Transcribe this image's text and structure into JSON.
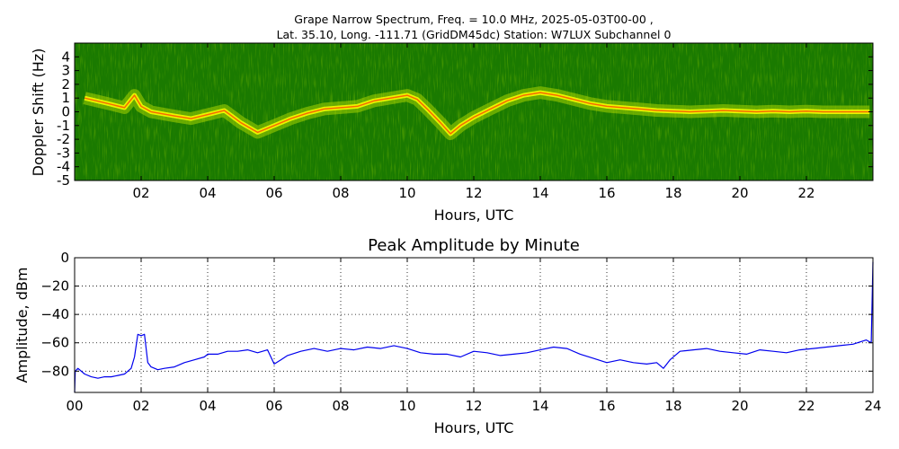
{
  "chart_data": [
    {
      "type": "heatmap",
      "title_line1": "Grape Narrow Spectrum, Freq. = 10.0 MHz, 2025-05-03T00-00 ,",
      "title_line2": "Lat.  35.10, Long. -111.71 (GridDM45dc) Station: W7LUX Subchannel 0",
      "xlabel": "Hours, UTC",
      "ylabel": "Doppler Shift (Hz)",
      "xlim": [
        0,
        24
      ],
      "ylim": [
        -5,
        5
      ],
      "x_ticks": [
        "02",
        "04",
        "06",
        "08",
        "10",
        "12",
        "14",
        "16",
        "18",
        "20",
        "22"
      ],
      "x_tick_values": [
        2,
        4,
        6,
        8,
        10,
        12,
        14,
        16,
        18,
        20,
        22
      ],
      "y_ticks": [
        "4",
        "3",
        "2",
        "1",
        "0",
        "-1",
        "-2",
        "-3",
        "-4",
        "-5"
      ],
      "y_tick_values": [
        4,
        3,
        2,
        1,
        0,
        -1,
        -2,
        -3,
        -4,
        -5
      ],
      "colors": {
        "background": "#1a7a00",
        "mid": "#b4dc00",
        "trace": "#ffff00",
        "peak": "#ff3000"
      },
      "doppler_trace": {
        "x": [
          0.3,
          1.0,
          1.5,
          1.8,
          2.0,
          2.3,
          3.0,
          3.5,
          4.0,
          4.5,
          5.0,
          5.5,
          6.0,
          6.5,
          7.0,
          7.5,
          8.0,
          8.5,
          9.0,
          9.5,
          10.0,
          10.3,
          10.6,
          11.0,
          11.3,
          11.6,
          12.0,
          12.5,
          13.0,
          13.5,
          14.0,
          14.5,
          15.0,
          15.5,
          16.0,
          16.5,
          17.0,
          17.5,
          18.0,
          18.5,
          19.0,
          19.5,
          20.0,
          20.5,
          21.0,
          21.5,
          22.0,
          22.5,
          23.0,
          23.5,
          23.9
        ],
        "y": [
          1.0,
          0.6,
          0.3,
          1.2,
          0.4,
          0.0,
          -0.3,
          -0.5,
          -0.2,
          0.1,
          -0.8,
          -1.5,
          -1.0,
          -0.5,
          -0.1,
          0.2,
          0.3,
          0.4,
          0.8,
          1.0,
          1.2,
          0.9,
          0.2,
          -0.8,
          -1.6,
          -1.0,
          -0.4,
          0.2,
          0.8,
          1.2,
          1.4,
          1.2,
          0.9,
          0.6,
          0.4,
          0.3,
          0.2,
          0.1,
          0.05,
          0.0,
          0.05,
          0.1,
          0.05,
          0.0,
          0.05,
          0.0,
          0.05,
          0.0,
          0.0,
          0.0,
          0.0
        ]
      }
    },
    {
      "type": "line",
      "title": "Peak Amplitude by Minute",
      "xlabel": "Hours, UTC",
      "ylabel": "Amplitude, dBm",
      "xlim": [
        0,
        24
      ],
      "ylim": [
        -95,
        0
      ],
      "grid": true,
      "x_ticks": [
        "00",
        "02",
        "04",
        "06",
        "08",
        "10",
        "12",
        "14",
        "16",
        "18",
        "20",
        "22",
        "24"
      ],
      "x_tick_values": [
        0,
        2,
        4,
        6,
        8,
        10,
        12,
        14,
        16,
        18,
        20,
        22,
        24
      ],
      "y_ticks": [
        "0",
        "−20",
        "−40",
        "−60",
        "−80"
      ],
      "y_tick_values": [
        0,
        -20,
        -40,
        -60,
        -80
      ],
      "colors": {
        "line": "#0000ee"
      },
      "series": [
        {
          "x": [
            0.0,
            0.02,
            0.1,
            0.3,
            0.5,
            0.7,
            0.9,
            1.1,
            1.3,
            1.5,
            1.7,
            1.8,
            1.9,
            2.0,
            2.1,
            2.2,
            2.3,
            2.5,
            2.7,
            3.0,
            3.3,
            3.6,
            3.9,
            4.0,
            4.3,
            4.6,
            4.9,
            5.2,
            5.5,
            5.8,
            6.0,
            6.2,
            6.4,
            6.8,
            7.2,
            7.6,
            8.0,
            8.4,
            8.8,
            9.2,
            9.6,
            10.0,
            10.4,
            10.8,
            11.2,
            11.6,
            12.0,
            12.4,
            12.8,
            13.2,
            13.6,
            14.0,
            14.4,
            14.8,
            15.2,
            15.6,
            16.0,
            16.4,
            16.8,
            17.2,
            17.5,
            17.7,
            17.9,
            18.2,
            18.6,
            19.0,
            19.4,
            19.8,
            20.2,
            20.6,
            21.0,
            21.4,
            21.8,
            22.2,
            22.6,
            23.0,
            23.4,
            23.8,
            23.95,
            24.0
          ],
          "y": [
            -95,
            -80,
            -78,
            -82,
            -84,
            -85,
            -84,
            -84,
            -83,
            -82,
            -78,
            -70,
            -54,
            -55,
            -54,
            -74,
            -77,
            -79,
            -78,
            -77,
            -74,
            -72,
            -70,
            -68,
            -68,
            -66,
            -66,
            -65,
            -67,
            -65,
            -75,
            -72,
            -69,
            -66,
            -64,
            -66,
            -64,
            -65,
            -63,
            -64,
            -62,
            -64,
            -67,
            -68,
            -68,
            -70,
            -66,
            -67,
            -69,
            -68,
            -67,
            -65,
            -63,
            -64,
            -68,
            -71,
            -74,
            -72,
            -74,
            -75,
            -74,
            -78,
            -72,
            -66,
            -65,
            -64,
            -66,
            -67,
            -68,
            -65,
            -66,
            -67,
            -65,
            -64,
            -63,
            -62,
            -61,
            -58,
            -60,
            -3
          ]
        }
      ]
    }
  ]
}
